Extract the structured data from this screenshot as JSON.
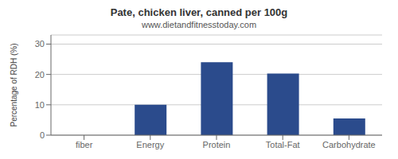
{
  "chart_data": {
    "type": "bar",
    "title": "Pate, chicken liver, canned per 100g",
    "subtitle": "www.dietandfitnesstoday.com",
    "categories": [
      "fiber",
      "Energy",
      "Protein",
      "Total-Fat",
      "Carbohydrate"
    ],
    "values": [
      0,
      10,
      24,
      20.3,
      5.5
    ],
    "color": "#2b4b8c",
    "ylabel": "Percentage of RDH (%)",
    "ylim": [
      0,
      33
    ],
    "yticks": [
      0,
      10,
      20,
      30
    ],
    "grid": true
  }
}
